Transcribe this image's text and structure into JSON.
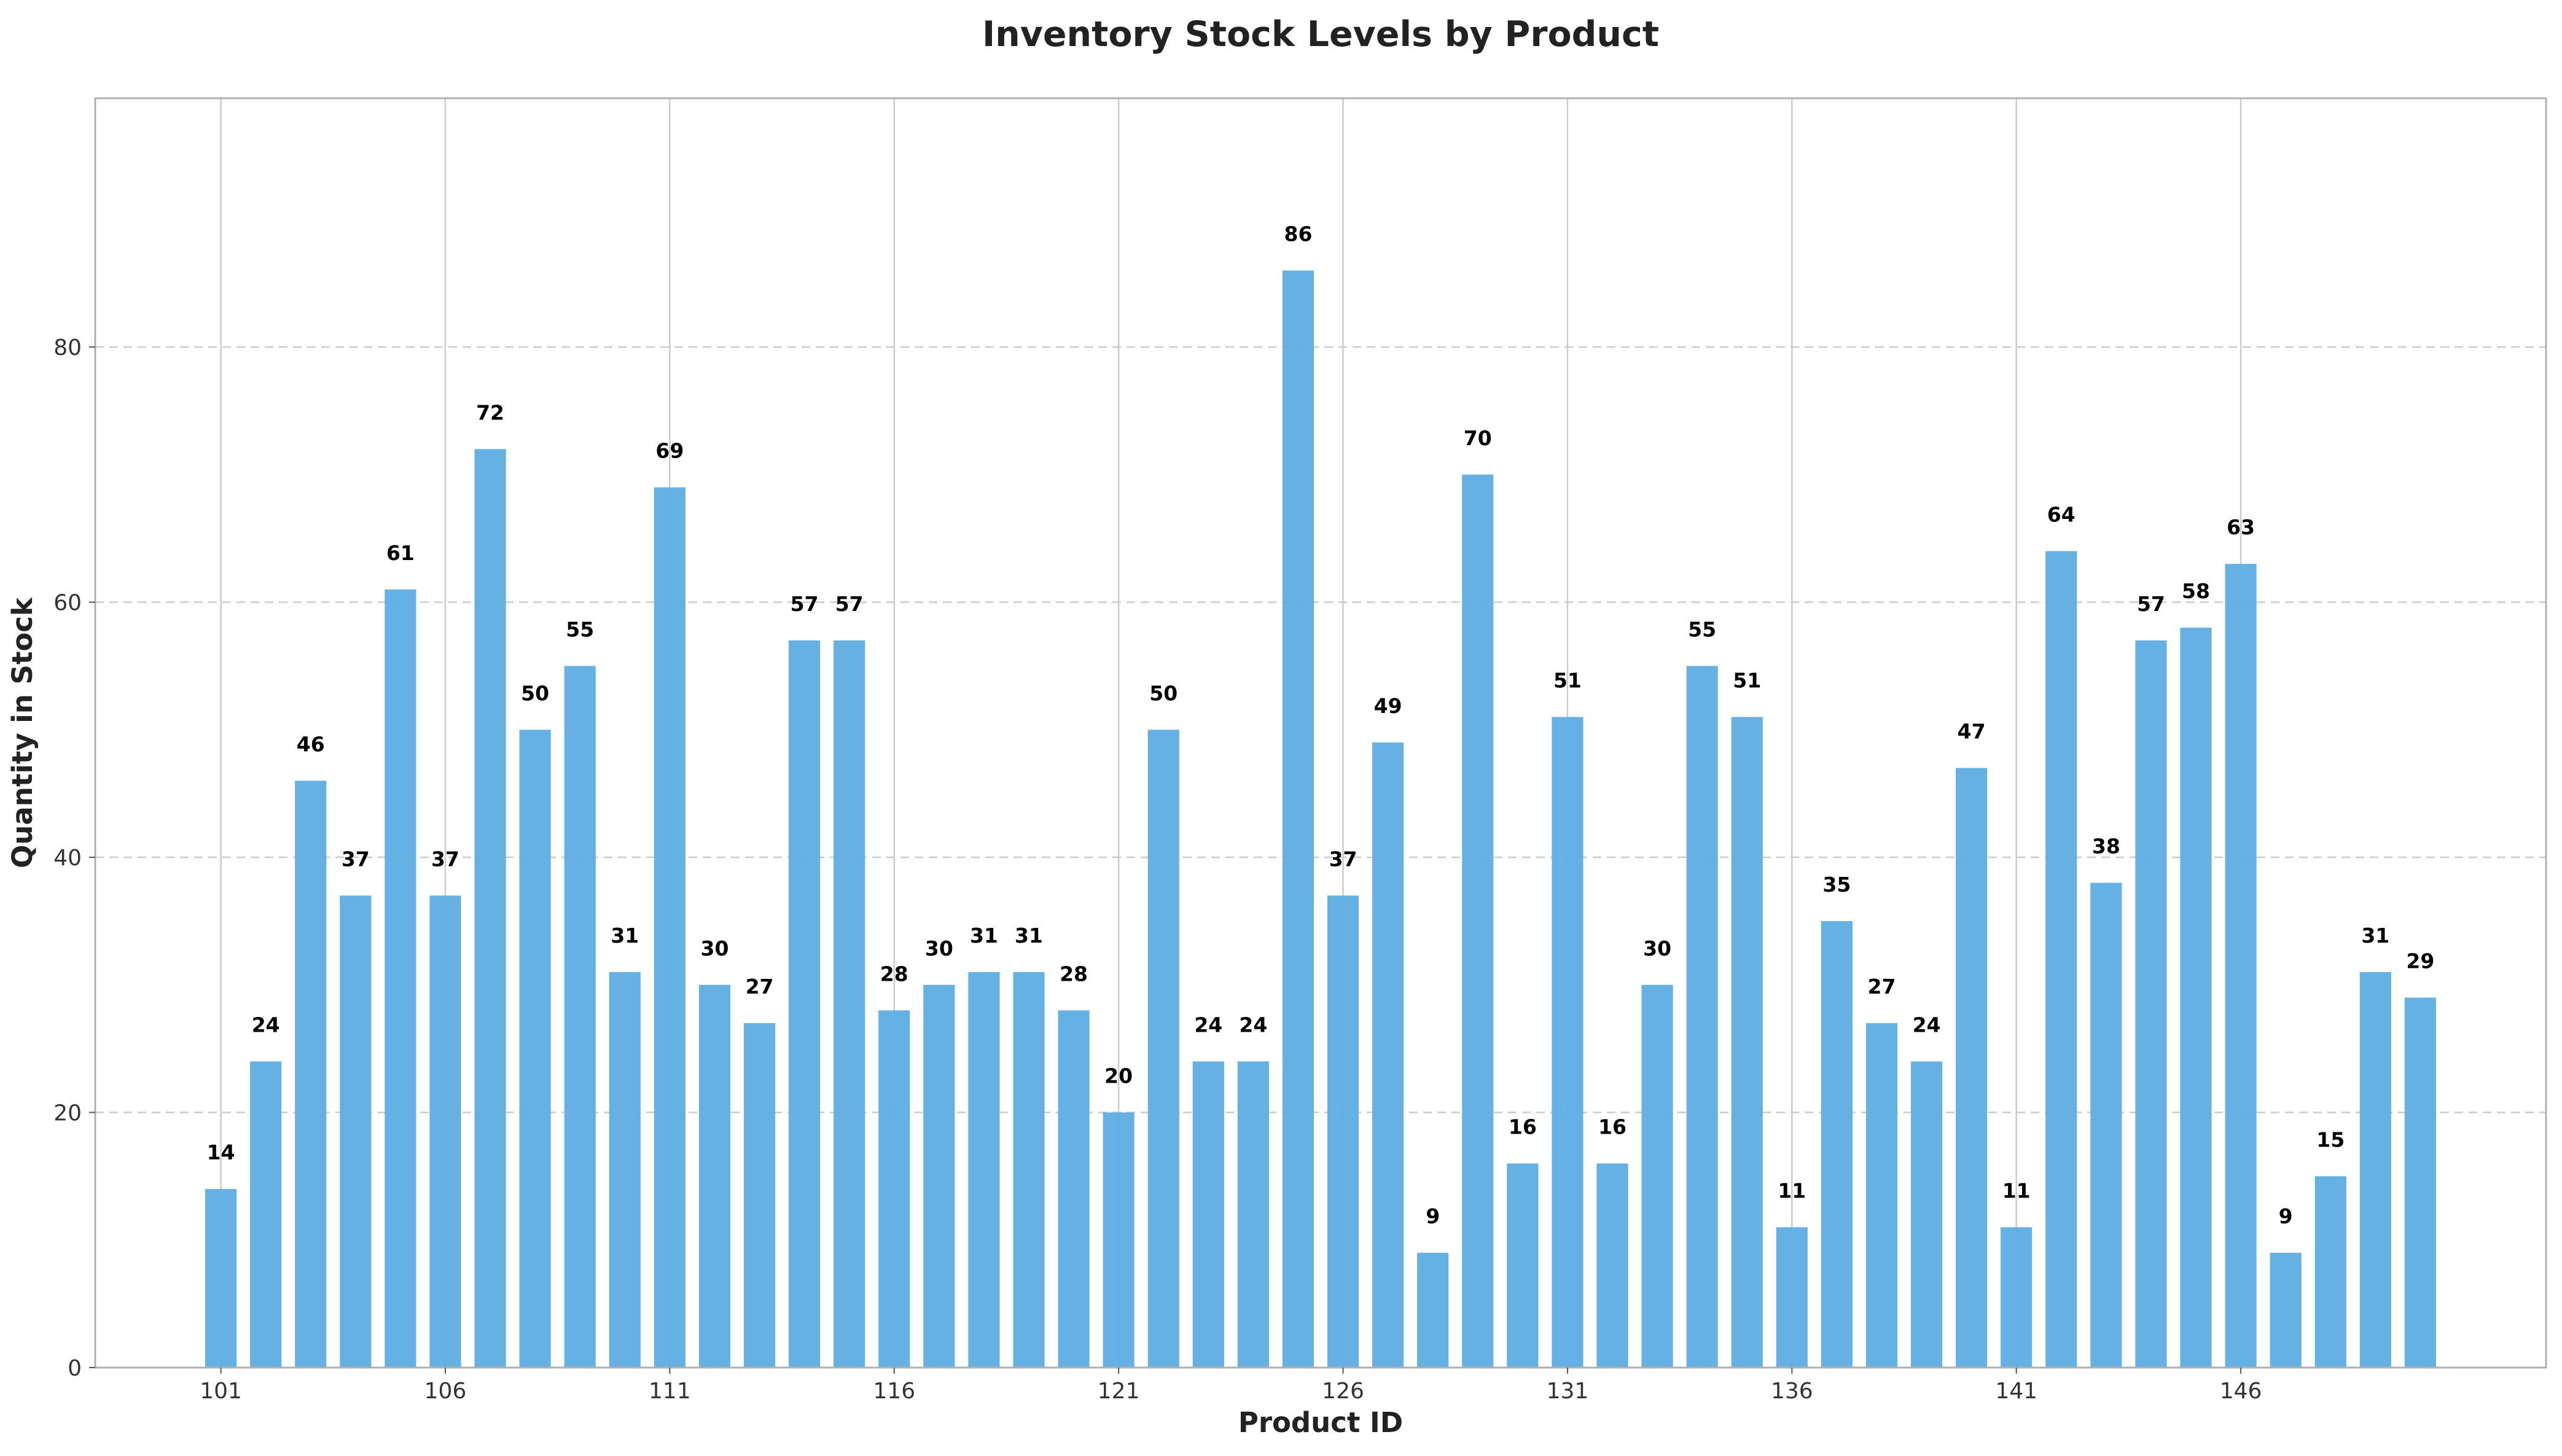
{
  "chart_data": {
    "type": "bar",
    "title": "Inventory Stock Levels by Product",
    "xlabel": "Product ID",
    "ylabel": "Quantity in Stock",
    "categories": [
      101,
      102,
      103,
      104,
      105,
      106,
      107,
      108,
      109,
      110,
      111,
      112,
      113,
      114,
      115,
      116,
      117,
      118,
      119,
      120,
      121,
      122,
      123,
      124,
      125,
      126,
      127,
      128,
      129,
      130,
      131,
      132,
      133,
      134,
      135,
      136,
      137,
      138,
      139,
      140,
      141,
      142,
      143,
      144,
      145,
      146,
      147,
      148,
      149,
      150
    ],
    "values": [
      14,
      24,
      46,
      37,
      61,
      37,
      72,
      50,
      55,
      31,
      69,
      30,
      27,
      57,
      57,
      28,
      30,
      31,
      31,
      28,
      20,
      50,
      24,
      24,
      86,
      37,
      49,
      9,
      70,
      16,
      51,
      16,
      30,
      55,
      51,
      11,
      35,
      27,
      24,
      47,
      11,
      64,
      38,
      57,
      58,
      63,
      9,
      15,
      31,
      29
    ],
    "x_ticks": [
      101,
      106,
      111,
      116,
      121,
      126,
      131,
      136,
      141,
      146
    ],
    "y_ticks": [
      0,
      20,
      40,
      60,
      80
    ],
    "ylim": [
      0,
      99.5
    ],
    "xlim": [
      98.2,
      152.8
    ],
    "grid": true,
    "bar_color": "#5DADE2"
  }
}
